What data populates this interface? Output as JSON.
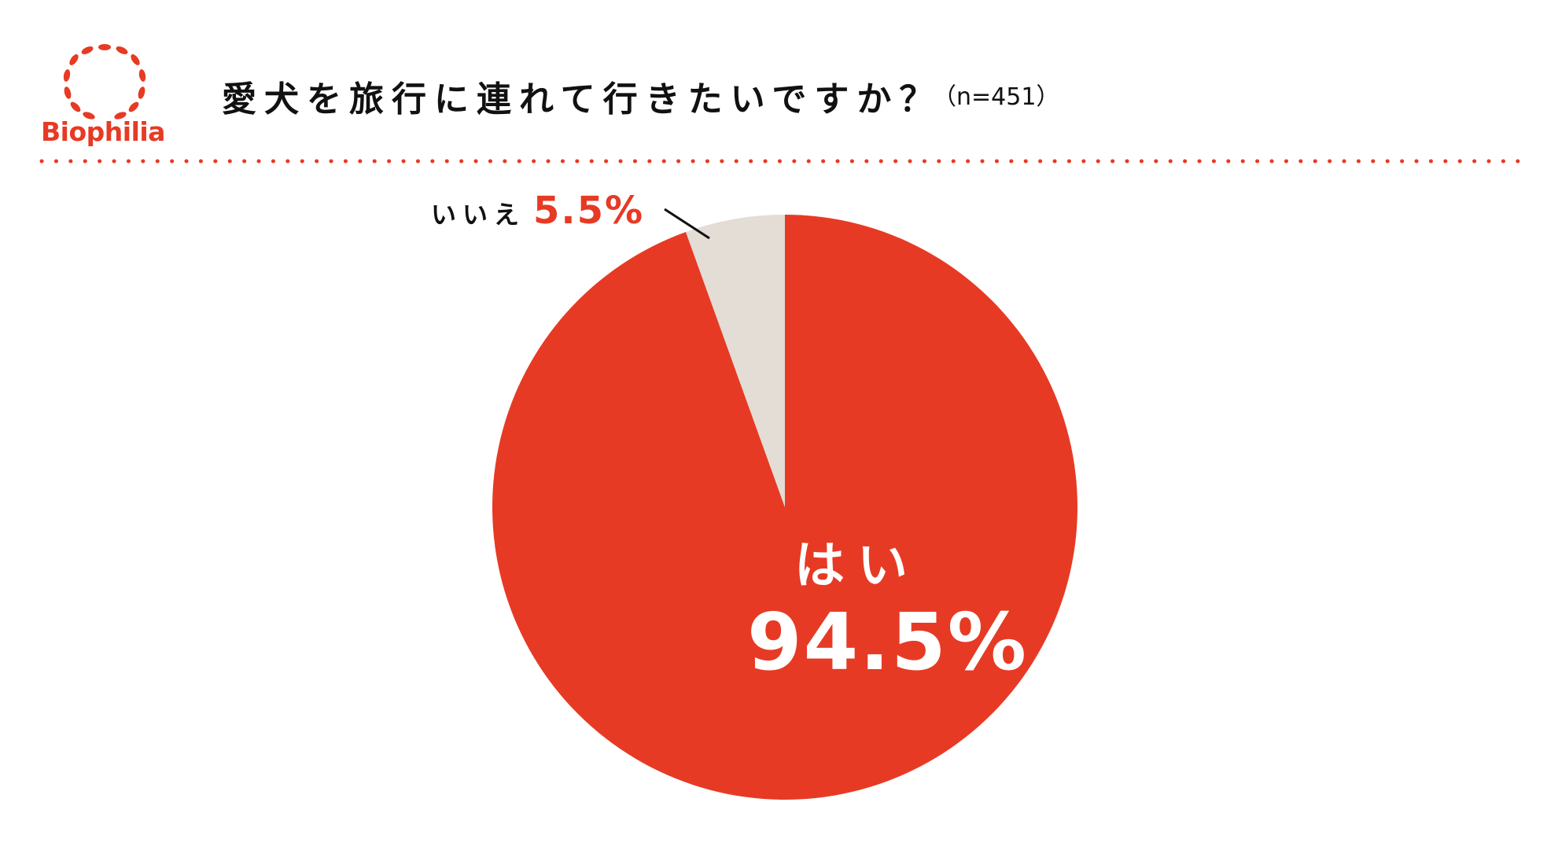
{
  "header": {
    "brand": "Biophilia",
    "title": "愛犬を旅行に連れて行きたいですか？",
    "sample_size": "（n=451）"
  },
  "chart_data": {
    "type": "pie",
    "title": "愛犬を旅行に連れて行きたいですか？",
    "categories": [
      "はい",
      "いいえ"
    ],
    "values": [
      94.5,
      5.5
    ],
    "labels": [
      "94.5%",
      "5.5%"
    ],
    "colors": [
      "#e73a24",
      "#e3ddd5"
    ],
    "start": "12 o'clock",
    "direction": "clockwise"
  },
  "colors": {
    "accent": "#e73a24",
    "secondary": "#e3ddd5",
    "text": "#111111"
  }
}
